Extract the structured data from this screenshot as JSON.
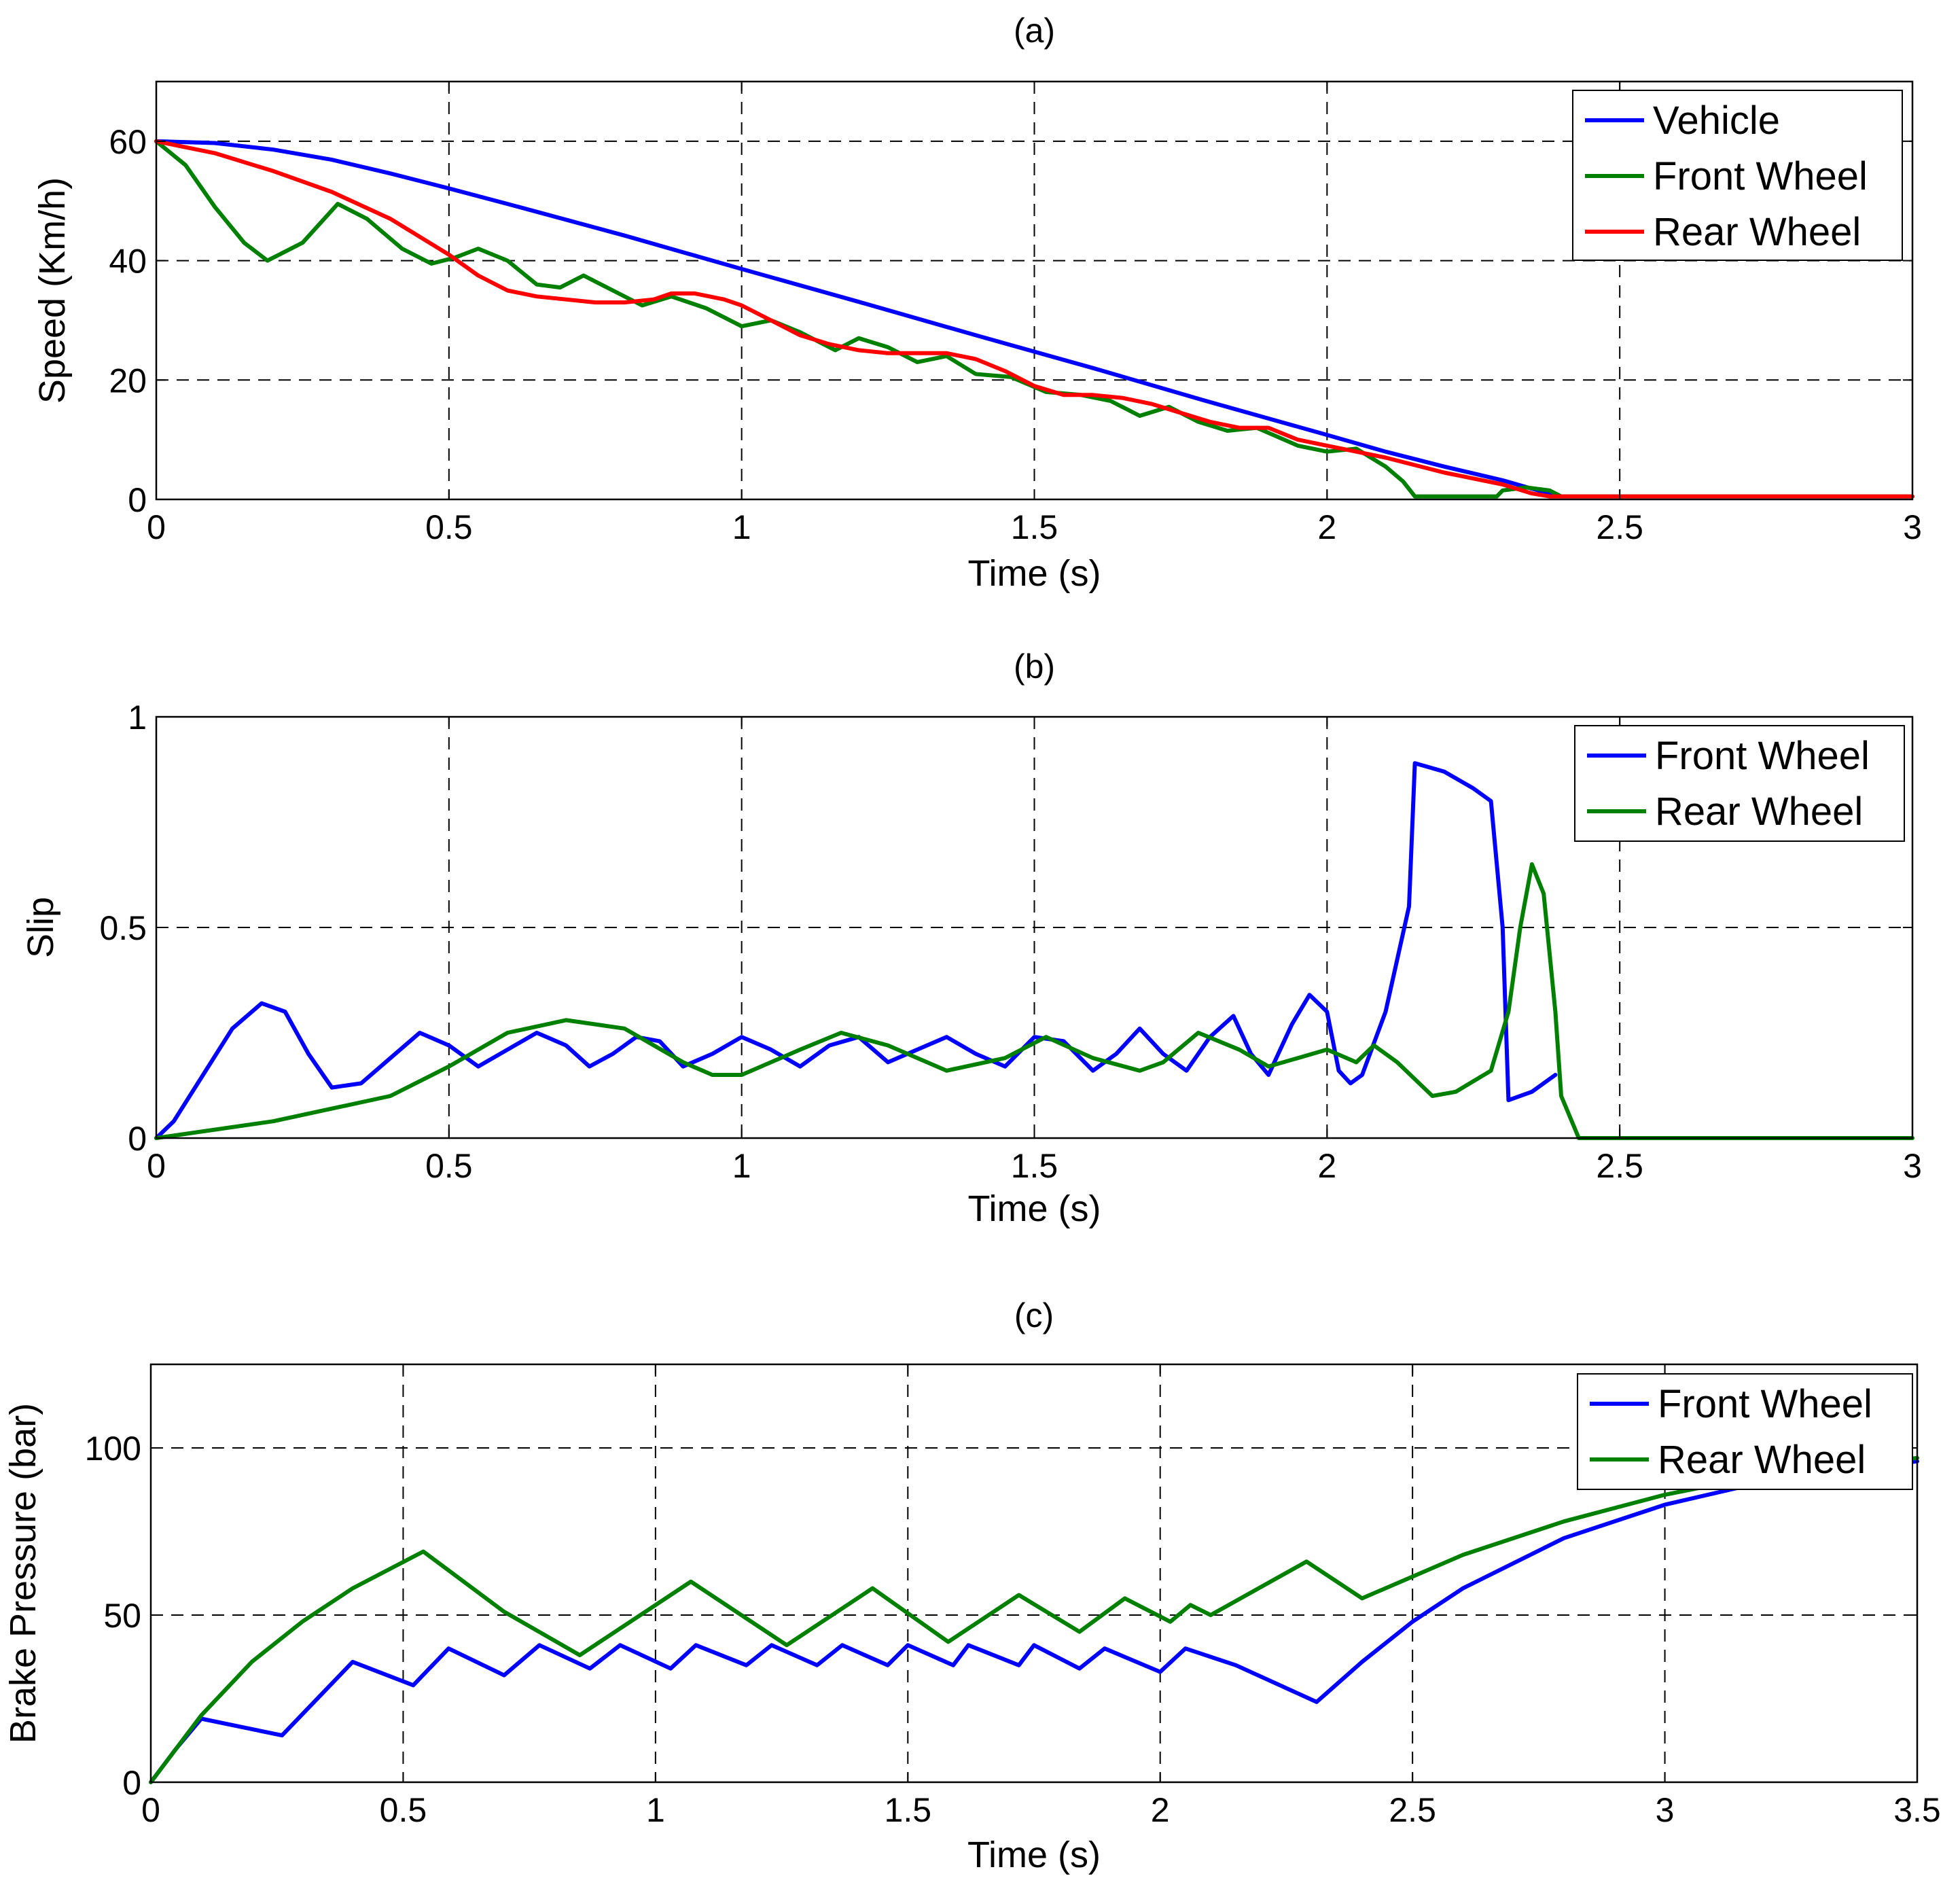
{
  "chart_data": [
    {
      "type": "line",
      "title": "(a)",
      "xlabel": "Time (s)",
      "ylabel": "Speed (Km/h)",
      "xlim": [
        0,
        3
      ],
      "ylim": [
        0,
        70
      ],
      "xticks": [
        0,
        0.5,
        1,
        1.5,
        2,
        2.5,
        3
      ],
      "xtick_labels": [
        "0",
        "0.5",
        "1",
        "1.5",
        "2",
        "2.5",
        "3"
      ],
      "yticks": [
        0,
        20,
        40,
        60
      ],
      "ytick_labels": [
        "0",
        "20",
        "40",
        "60"
      ],
      "grid": true,
      "legend_position": "top-right",
      "series": [
        {
          "name": "Vehicle",
          "color": "#0000FF",
          "x": [
            0,
            0.1,
            0.2,
            0.3,
            0.4,
            0.5,
            0.6,
            0.8,
            1.0,
            1.2,
            1.4,
            1.6,
            1.8,
            2.0,
            2.1,
            2.2,
            2.3,
            2.35,
            2.4
          ],
          "y": [
            60,
            59.7,
            58.6,
            56.9,
            54.6,
            52.1,
            49.5,
            44.2,
            38.6,
            33.1,
            27.5,
            22,
            16.3,
            10.8,
            8,
            5.5,
            3.2,
            1.8,
            0.5
          ]
        },
        {
          "name": "Front Wheel",
          "color": "#008000",
          "x": [
            0,
            0.05,
            0.1,
            0.15,
            0.19,
            0.25,
            0.31,
            0.36,
            0.42,
            0.47,
            0.51,
            0.55,
            0.6,
            0.65,
            0.69,
            0.73,
            0.78,
            0.83,
            0.88,
            0.94,
            1.0,
            1.05,
            1.1,
            1.16,
            1.2,
            1.25,
            1.3,
            1.35,
            1.4,
            1.46,
            1.52,
            1.58,
            1.63,
            1.68,
            1.73,
            1.78,
            1.83,
            1.88,
            1.95,
            2.0,
            2.05,
            2.1,
            2.13,
            2.15,
            2.2,
            2.25,
            2.29,
            2.3,
            2.34,
            2.38,
            2.4,
            2.45,
            3.0
          ],
          "y": [
            60,
            56,
            49,
            43,
            40,
            43,
            49.5,
            47,
            42,
            39.5,
            40.5,
            42,
            40,
            36,
            35.5,
            37.5,
            35,
            32.5,
            34,
            32,
            29,
            30,
            28,
            25,
            27,
            25.5,
            23,
            24,
            21,
            20.5,
            18,
            17.5,
            16.5,
            14,
            15.5,
            13,
            11.5,
            12,
            9,
            8,
            8.5,
            5.5,
            3,
            0.5,
            0.5,
            0.5,
            0.5,
            1.5,
            2,
            1.5,
            0.5,
            0.5,
            0.5
          ]
        },
        {
          "name": "Rear Wheel",
          "color": "#FF0000",
          "x": [
            0,
            0.1,
            0.2,
            0.3,
            0.4,
            0.5,
            0.55,
            0.6,
            0.65,
            0.7,
            0.75,
            0.8,
            0.85,
            0.88,
            0.92,
            0.97,
            1.0,
            1.05,
            1.1,
            1.15,
            1.2,
            1.25,
            1.3,
            1.35,
            1.4,
            1.45,
            1.5,
            1.55,
            1.6,
            1.65,
            1.7,
            1.75,
            1.8,
            1.85,
            1.9,
            1.95,
            2.0,
            2.05,
            2.1,
            2.2,
            2.3,
            2.35,
            2.38,
            2.4,
            2.45,
            3.0
          ],
          "y": [
            60,
            58,
            55,
            51.5,
            47,
            41,
            37.5,
            35,
            34,
            33.5,
            33,
            33,
            33.5,
            34.5,
            34.5,
            33.5,
            32.5,
            30,
            27.5,
            26,
            25,
            24.5,
            24.5,
            24.5,
            23.5,
            21.5,
            19,
            17.5,
            17.5,
            17,
            16,
            14.5,
            13,
            12,
            12,
            10,
            9,
            8,
            7,
            4.5,
            2.5,
            1,
            0.5,
            0.5,
            0.5,
            0.5
          ]
        }
      ]
    },
    {
      "type": "line",
      "title": "(b)",
      "xlabel": "Time (s)",
      "ylabel": "Slip",
      "xlim": [
        0,
        3
      ],
      "ylim": [
        0,
        1
      ],
      "xticks": [
        0,
        0.5,
        1,
        1.5,
        2,
        2.5,
        3
      ],
      "xtick_labels": [
        "0",
        "0.5",
        "1",
        "1.5",
        "2",
        "2.5",
        "3"
      ],
      "yticks": [
        0,
        0.5,
        1
      ],
      "ytick_labels": [
        "0",
        "0.5",
        "1"
      ],
      "grid": true,
      "legend_position": "top-right",
      "series": [
        {
          "name": "Front Wheel",
          "color": "#0000FF",
          "x": [
            0,
            0.03,
            0.08,
            0.13,
            0.18,
            0.22,
            0.26,
            0.3,
            0.35,
            0.4,
            0.45,
            0.5,
            0.55,
            0.6,
            0.65,
            0.7,
            0.74,
            0.78,
            0.82,
            0.86,
            0.9,
            0.95,
            1.0,
            1.05,
            1.1,
            1.15,
            1.2,
            1.25,
            1.3,
            1.35,
            1.4,
            1.45,
            1.5,
            1.55,
            1.6,
            1.64,
            1.68,
            1.72,
            1.76,
            1.8,
            1.84,
            1.87,
            1.9,
            1.94,
            1.97,
            2.0,
            2.02,
            2.04,
            2.06,
            2.1,
            2.14,
            2.15,
            2.2,
            2.25,
            2.28,
            2.3,
            2.31,
            2.35,
            2.39
          ],
          "y": [
            0,
            0.04,
            0.15,
            0.26,
            0.32,
            0.3,
            0.2,
            0.12,
            0.13,
            0.19,
            0.25,
            0.22,
            0.17,
            0.21,
            0.25,
            0.22,
            0.17,
            0.2,
            0.24,
            0.23,
            0.17,
            0.2,
            0.24,
            0.21,
            0.17,
            0.22,
            0.24,
            0.18,
            0.21,
            0.24,
            0.2,
            0.17,
            0.24,
            0.23,
            0.16,
            0.2,
            0.26,
            0.2,
            0.16,
            0.24,
            0.29,
            0.2,
            0.15,
            0.27,
            0.34,
            0.3,
            0.16,
            0.13,
            0.15,
            0.3,
            0.55,
            0.89,
            0.87,
            0.83,
            0.8,
            0.5,
            0.09,
            0.11,
            0.15
          ]
        },
        {
          "name": "Rear Wheel",
          "color": "#008000",
          "x": [
            0,
            0.2,
            0.3,
            0.4,
            0.5,
            0.6,
            0.7,
            0.8,
            0.9,
            0.95,
            1.0,
            1.1,
            1.17,
            1.25,
            1.35,
            1.45,
            1.52,
            1.6,
            1.68,
            1.72,
            1.78,
            1.85,
            1.9,
            1.95,
            2.0,
            2.05,
            2.08,
            2.12,
            2.18,
            2.22,
            2.28,
            2.31,
            2.33,
            2.35,
            2.37,
            2.39,
            2.4,
            2.43,
            3.0
          ],
          "y": [
            0,
            0.04,
            0.07,
            0.1,
            0.17,
            0.25,
            0.28,
            0.26,
            0.18,
            0.15,
            0.15,
            0.21,
            0.25,
            0.22,
            0.16,
            0.19,
            0.24,
            0.19,
            0.16,
            0.18,
            0.25,
            0.21,
            0.17,
            0.19,
            0.21,
            0.18,
            0.22,
            0.18,
            0.1,
            0.11,
            0.16,
            0.3,
            0.5,
            0.65,
            0.58,
            0.3,
            0.1,
            0,
            0
          ]
        }
      ]
    },
    {
      "type": "line",
      "title": "(c)",
      "xlabel": "Time (s)",
      "ylabel": "Brake Pressure (bar)",
      "xlim": [
        0,
        3.5
      ],
      "ylim": [
        0,
        125
      ],
      "xticks": [
        0,
        0.5,
        1,
        1.5,
        2,
        2.5,
        3,
        3.5
      ],
      "xtick_labels": [
        "0",
        "0.5",
        "1",
        "1.5",
        "2",
        "2.5",
        "3",
        "3.5"
      ],
      "yticks": [
        0,
        50,
        100
      ],
      "ytick_labels": [
        "0",
        "50",
        "100"
      ],
      "grid": true,
      "legend_position": "top-right",
      "series": [
        {
          "name": "Front Wheel",
          "color": "#0000FF",
          "x": [
            0,
            0.05,
            0.1,
            0.26,
            0.4,
            0.52,
            0.59,
            0.7,
            0.77,
            0.87,
            0.93,
            1.03,
            1.08,
            1.18,
            1.23,
            1.32,
            1.37,
            1.46,
            1.5,
            1.59,
            1.62,
            1.72,
            1.75,
            1.84,
            1.89,
            2.0,
            2.05,
            2.15,
            2.31,
            2.4,
            2.5,
            2.6,
            2.8,
            3.0,
            3.2,
            3.5
          ],
          "y": [
            0,
            10,
            19,
            14,
            36,
            29,
            40,
            32,
            41,
            34,
            41,
            34,
            41,
            35,
            41,
            35,
            41,
            35,
            41,
            35,
            41,
            35,
            41,
            34,
            40,
            33,
            40,
            35,
            24,
            36,
            48,
            58,
            73,
            83,
            90,
            96
          ]
        },
        {
          "name": "Rear Wheel",
          "color": "#008000",
          "x": [
            0,
            0.1,
            0.2,
            0.3,
            0.4,
            0.54,
            0.7,
            0.85,
            1.0,
            1.07,
            1.26,
            1.43,
            1.58,
            1.72,
            1.84,
            1.93,
            2.02,
            2.06,
            2.1,
            2.29,
            2.4,
            2.6,
            2.8,
            3.0,
            3.2,
            3.5
          ],
          "y": [
            0,
            20,
            36,
            48,
            58,
            69,
            51,
            38,
            53,
            60,
            41,
            58,
            42,
            56,
            45,
            55,
            48,
            53,
            50,
            66,
            55,
            68,
            78,
            86,
            92,
            97
          ]
        }
      ]
    }
  ]
}
